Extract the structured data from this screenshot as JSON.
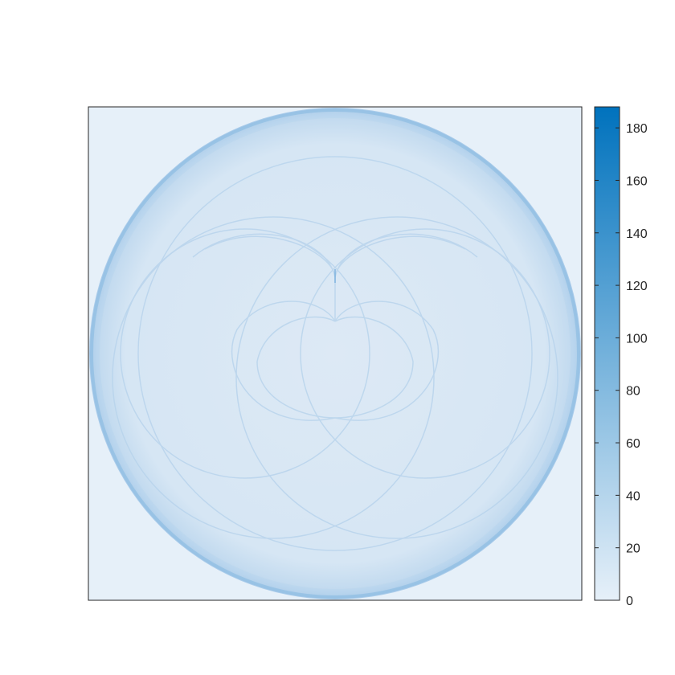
{
  "chart_data": {
    "type": "heatmap",
    "title": "",
    "xlabel": "",
    "ylabel": "",
    "axes_ticks_visible": false,
    "grid": false,
    "description_of_pattern": [],
    "colorbar": {
      "position": "right",
      "clim": [
        0,
        188
      ],
      "ticks": [
        0,
        20,
        40,
        60,
        80,
        100,
        120,
        140,
        160,
        180
      ],
      "tick_labels": [
        "0",
        "20",
        "40",
        "60",
        "80",
        "100",
        "120",
        "140",
        "160",
        "180"
      ],
      "colormap": [
        "#e6f0f9",
        "#0072bd"
      ]
    },
    "density_features": {
      "outer_ring": {
        "level": 60
      },
      "background": {
        "level": 0
      },
      "inner_curves": {
        "level": 15
      }
    }
  },
  "colors": {
    "low": "#e6f0f9",
    "high": "#0072bd",
    "axes_border": "#262626"
  }
}
